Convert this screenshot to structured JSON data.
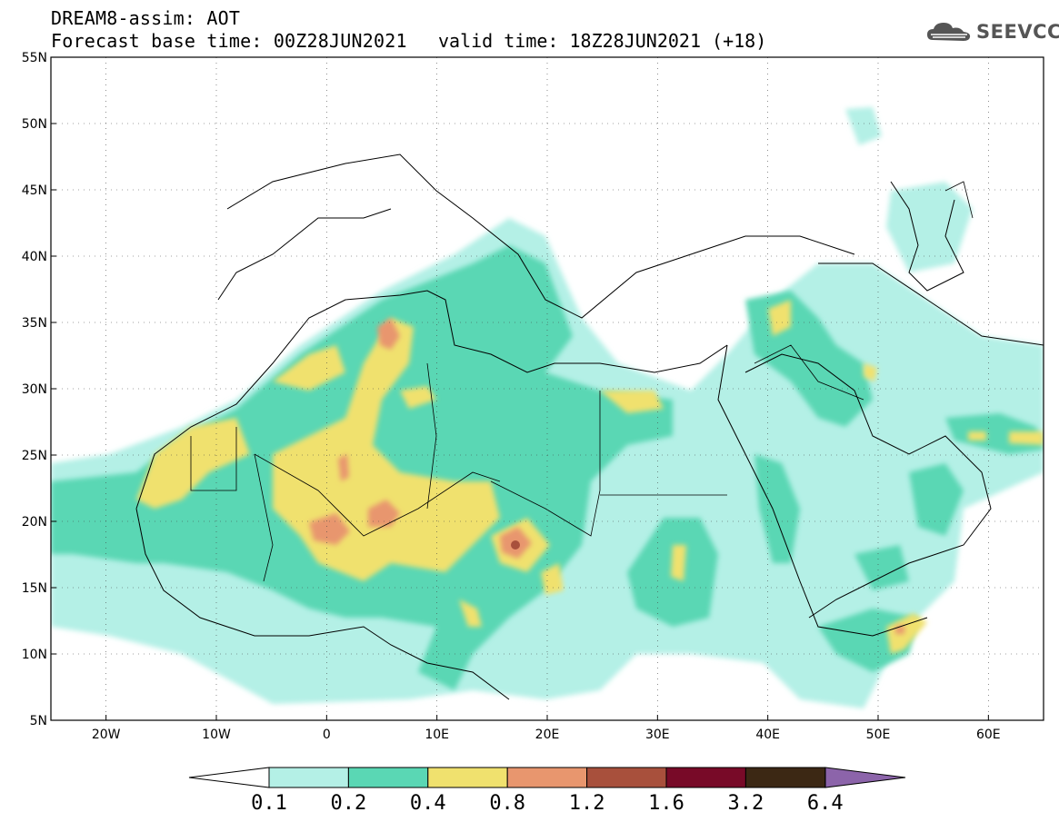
{
  "header": {
    "line1": "DREAM8-assim: AOT",
    "line2": "Forecast base time: 00Z28JUN2021",
    "valid": "valid time: 18Z28JUN2021 (+18)"
  },
  "logo": {
    "text": "SEEVCCC",
    "icon": "cloud-icon"
  },
  "map": {
    "lon_range": [
      -25,
      65
    ],
    "lat_range": [
      5,
      55
    ],
    "lon_ticks": [
      {
        "lon": -20,
        "label": "20W"
      },
      {
        "lon": -10,
        "label": "10W"
      },
      {
        "lon": 0,
        "label": "0"
      },
      {
        "lon": 10,
        "label": "10E"
      },
      {
        "lon": 20,
        "label": "20E"
      },
      {
        "lon": 30,
        "label": "30E"
      },
      {
        "lon": 40,
        "label": "40E"
      },
      {
        "lon": 50,
        "label": "50E"
      },
      {
        "lon": 60,
        "label": "60E"
      }
    ],
    "lat_ticks": [
      {
        "lat": 55,
        "label": "55N"
      },
      {
        "lat": 50,
        "label": "50N"
      },
      {
        "lat": 45,
        "label": "45N"
      },
      {
        "lat": 40,
        "label": "40N"
      },
      {
        "lat": 35,
        "label": "35N"
      },
      {
        "lat": 30,
        "label": "30N"
      },
      {
        "lat": 25,
        "label": "25N"
      },
      {
        "lat": 20,
        "label": "20N"
      },
      {
        "lat": 15,
        "label": "15N"
      },
      {
        "lat": 10,
        "label": "10N"
      },
      {
        "lat": 5,
        "label": "5N"
      }
    ],
    "grid": "dotted"
  },
  "colorbar": {
    "bins": [
      {
        "color": "#b4f0e6"
      },
      {
        "color": "#5ad7b4"
      },
      {
        "color": "#f0e16e"
      },
      {
        "color": "#e8966e"
      },
      {
        "color": "#a8503c"
      },
      {
        "color": "#780a28"
      },
      {
        "color": "#3c2814"
      }
    ],
    "over_color": "#8c64aa",
    "under_color": "#ffffff",
    "labels": [
      "0.1",
      "0.2",
      "0.4",
      "0.8",
      "1.2",
      "1.6",
      "3.2",
      "6.4"
    ]
  }
}
